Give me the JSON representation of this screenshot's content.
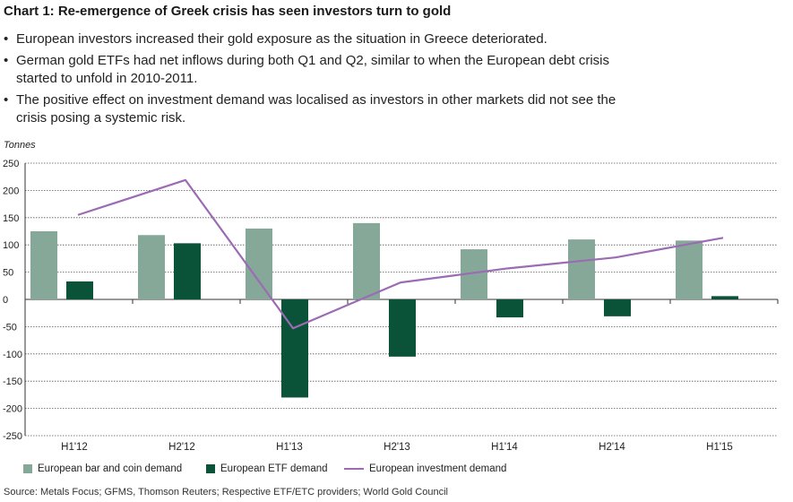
{
  "title": "Chart 1: Re-emergence of Greek crisis has seen investors turn to gold",
  "bullets": [
    "European investors increased their gold exposure as the situation in Greece deteriorated.",
    "German gold ETFs had net inflows during both Q1 and Q2, similar to when the European debt crisis started to unfold in 2010-2011.",
    "The positive effect on investment demand was localised as investors in other markets did not see the crisis posing a systemic risk."
  ],
  "source": "Source: Metals Focus; GFMS, Thomson Reuters; Respective ETF/ETC providers; World Gold Council",
  "colors": {
    "bar_coin": "#86a898",
    "etf": "#0b5338",
    "line": "#9b6bb4"
  },
  "chart_data": {
    "type": "bar",
    "title": "",
    "xlabel": "",
    "ylabel": "Tonnes",
    "ylim": [
      -250,
      250
    ],
    "yticks": [
      250,
      200,
      150,
      100,
      50,
      0,
      -50,
      -100,
      -150,
      -200,
      -250
    ],
    "grid": true,
    "legend_position": "bottom",
    "categories": [
      "H1'12",
      "H2'12",
      "H1'13",
      "H2'13",
      "H1'14",
      "H2'14",
      "H1'15"
    ],
    "series": [
      {
        "name": "European bar and coin demand",
        "kind": "bar",
        "values": [
          125,
          118,
          130,
          140,
          92,
          110,
          108
        ]
      },
      {
        "name": "European ETF demand",
        "kind": "bar",
        "values": [
          33,
          103,
          -180,
          -105,
          -33,
          -31,
          6
        ]
      },
      {
        "name": "European investment demand",
        "kind": "line",
        "values": [
          155,
          219,
          -53,
          31,
          57,
          77,
          113
        ]
      }
    ]
  }
}
